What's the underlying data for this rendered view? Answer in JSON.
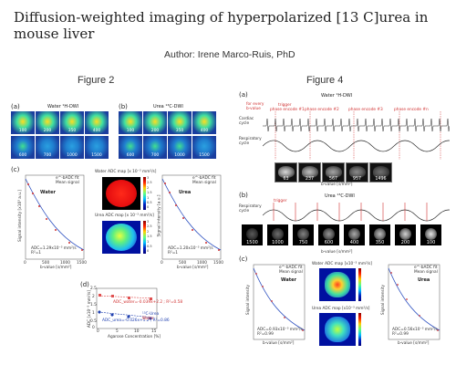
{
  "title": "Diffusion-weighted imaging of hyperpolarized [13 C]urea in mouse liver",
  "author": "Author: Irene Marco-Ruis, PhD",
  "figure2": {
    "heading": "Figure 2",
    "panel_a": {
      "label": "(a)",
      "title": "Water ¹H-DWI",
      "tiles": [
        "100",
        "200",
        "350",
        "400",
        "600",
        "700",
        "1000",
        "1500"
      ]
    },
    "panel_b": {
      "label": "(b)",
      "title": "Urea ¹³C-DWI",
      "tiles": [
        "100",
        "200",
        "350",
        "400",
        "600",
        "700",
        "1000",
        "1500"
      ]
    },
    "panel_c": {
      "label": "(c)",
      "left_plot": {
        "title": "Water",
        "legend": [
          "e^-bADC fit",
          "Mean signal"
        ],
        "ylabel": "Signal intensity [x10³ a.u.]",
        "xlabel": "b-value [s/mm²]",
        "xticks": [
          "0",
          "500",
          "1000",
          "1500"
        ],
        "annotation": "ADC=1.29x10⁻³ mm²/s",
        "r2": "R²=1"
      },
      "water_map_title": "Water ADC map [x 10⁻³ mm²/s]",
      "urea_map_title": "Urea ADC map [x 10⁻³ mm²/s]",
      "colorbar_ticks": [
        "3",
        "2.5",
        "2",
        "1.5",
        "1",
        "0.5",
        "0"
      ],
      "right_plot": {
        "title": "Urea",
        "legend": [
          "e^-bADC fit",
          "Mean signal"
        ],
        "ylabel": "Signal intensity [a.u.]",
        "xlabel": "b-value [s/mm²]",
        "xticks": [
          "0",
          "500",
          "1000",
          "1500"
        ],
        "annotation": "ADC=1.20x10⁻³ mm²/s",
        "r2": "R²=1"
      }
    },
    "panel_d": {
      "label": "(d)",
      "ylabel": "ADC [x10⁻³ mm²/s]",
      "xlabel": "Agarose Concentration [%]",
      "yticks": [
        "2.5",
        "2",
        "1.5",
        "1",
        "0.5",
        "0"
      ],
      "xticks": [
        "0",
        "5",
        "10",
        "15"
      ],
      "legend": [
        "¹³C-Urea",
        "Water"
      ],
      "eq_water": "ADC_water=-0.039x+2.2 ; R²=0.58",
      "eq_urea": "ADC_urea=-0.026x+1.2 ; R²=0.86"
    }
  },
  "figure4": {
    "heading": "Figure 4",
    "panel_a": {
      "label": "(a)",
      "title": "Water ¹H-DWI",
      "sidenote": "for every b-value",
      "trigger": "trigger",
      "phase_encodes": [
        "phase encode #1",
        "phase encode #2",
        "phase encode #3",
        "phase encode #n"
      ],
      "row1": "Cardiac cycle",
      "row2": "Respiratory cycle",
      "bvalues": [
        "63",
        "237",
        "567",
        "957",
        "1496"
      ],
      "xlabel": "b-value [s/mm²]"
    },
    "panel_b": {
      "label": "(b)",
      "title": "Urea ¹³C-DWI",
      "trigger": "trigger",
      "row": "Respiratory cycle",
      "bvalues": [
        "1500",
        "1000",
        "750",
        "600",
        "400",
        "350",
        "200",
        "100"
      ],
      "xlabel": "b-value [s/mm²]"
    },
    "panel_c": {
      "label": "(c)",
      "left_plot": {
        "title": "Water",
        "legend": [
          "e^-bADC fit",
          "Mean signal"
        ],
        "ylabel": "Signal intensity",
        "xlabel": "b-value [s/mm²]",
        "annotation": "ADC=0.93x10⁻³ mm²/s",
        "r2": "R²=0.99"
      },
      "water_map_title": "Water ADC map [x10⁻³ mm²/s]",
      "urea_map_title": "Urea ADC map [x10⁻³ mm²/s]",
      "right_plot": {
        "title": "Urea",
        "legend": [
          "e^-bADC fit",
          "Mean signal"
        ],
        "ylabel": "Signal intensity",
        "xlabel": "b-value [s/mm²]",
        "annotation": "ADC=0.56x10⁻³ mm²/s",
        "r2": "R²=0.99"
      }
    }
  },
  "colors": {
    "tile_bg": "#1a3d9e",
    "fit_line": "#2b4fc0",
    "marker_red": "#d03030",
    "water_series": "#e05050",
    "urea_series": "#2040b0"
  }
}
